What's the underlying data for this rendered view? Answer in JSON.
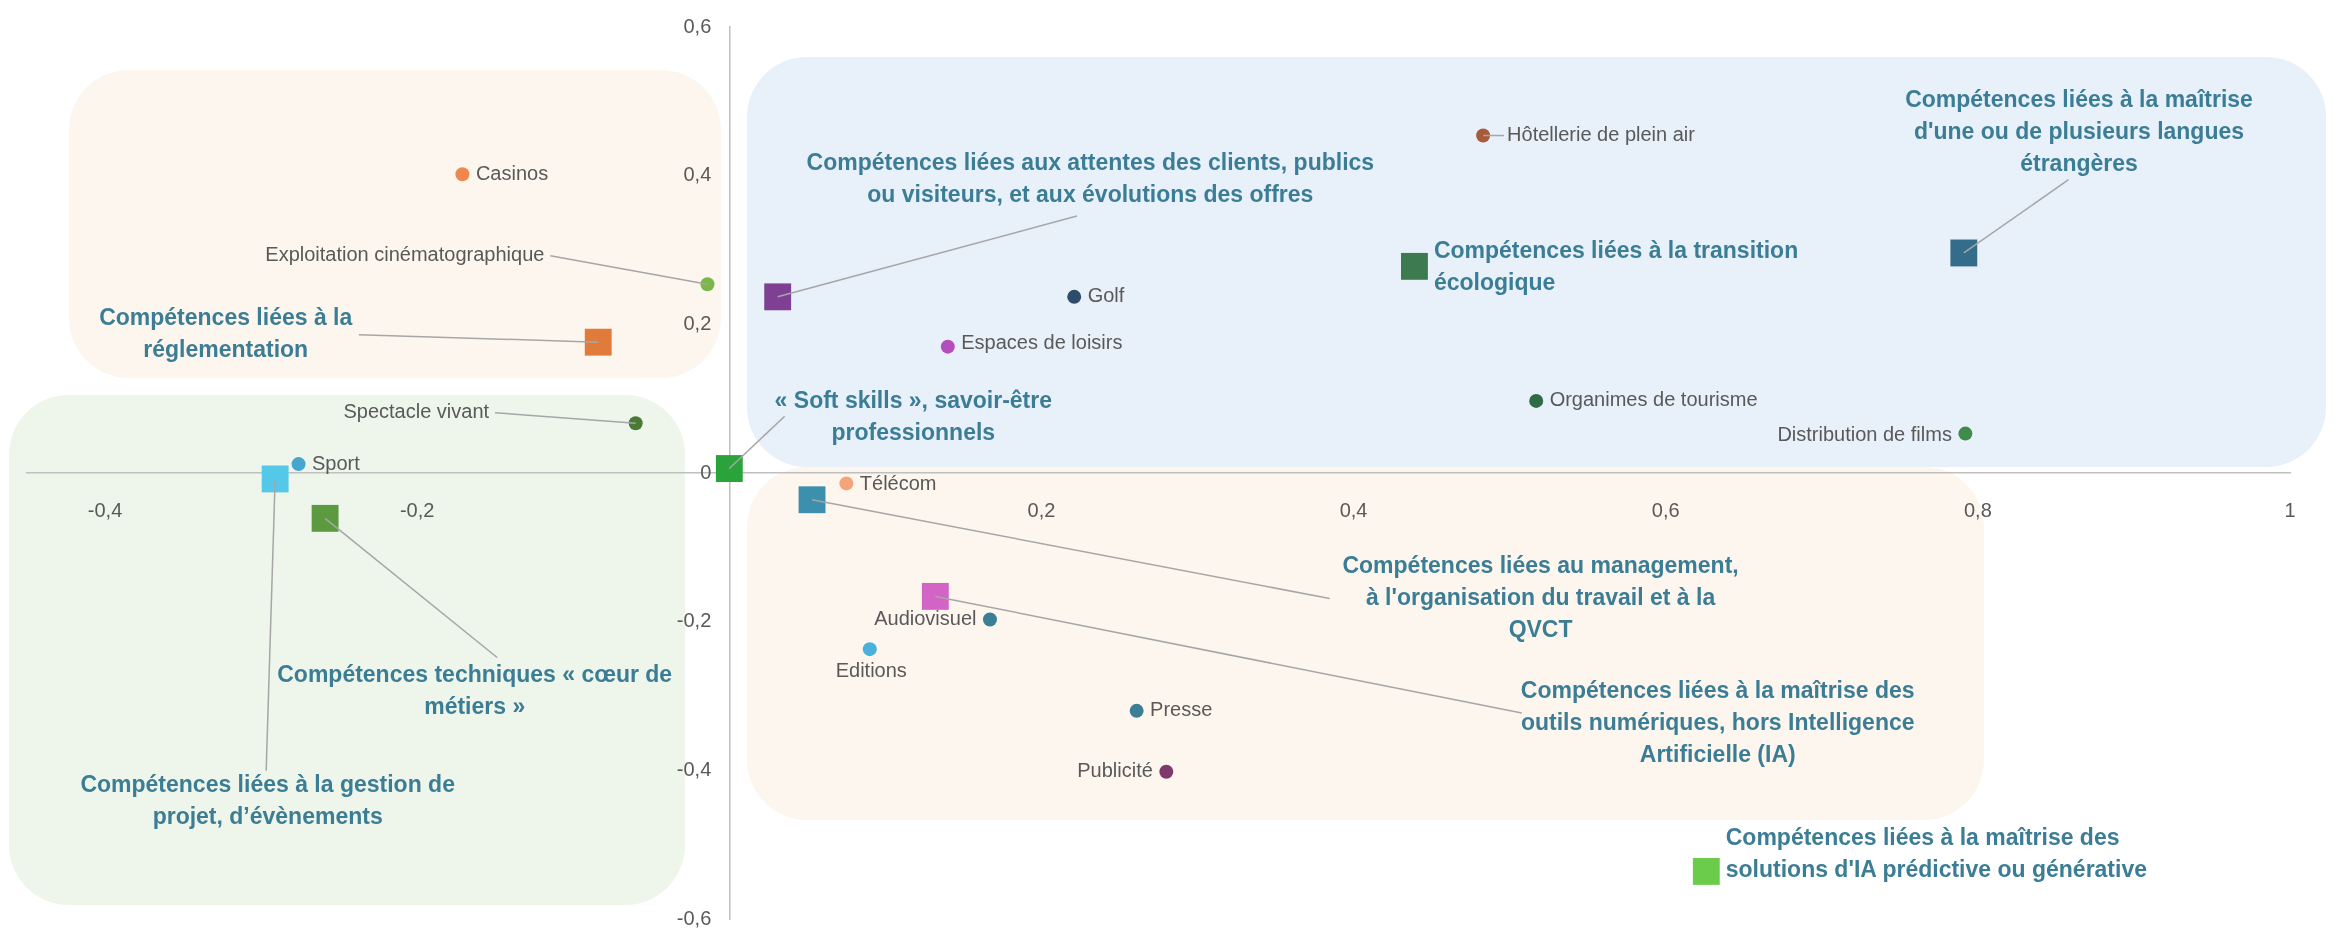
{
  "chart_data": {
    "type": "scatter",
    "xlim": [
      -0.45,
      1
    ],
    "ylim": [
      -0.6,
      0.6
    ],
    "xticks": [
      {
        "value": -0.4,
        "label": "-0,4"
      },
      {
        "value": -0.2,
        "label": "-0,2"
      },
      {
        "value": 0,
        "label": null
      },
      {
        "value": 0.2,
        "label": "0,2"
      },
      {
        "value": 0.4,
        "label": "0,4"
      },
      {
        "value": 0.6,
        "label": "0,6"
      },
      {
        "value": 0.8,
        "label": "0,8"
      },
      1
    ],
    "yticks": [
      {
        "value": -0.6,
        "label": "-0,6"
      },
      {
        "value": -0.4,
        "label": "-0,4"
      },
      {
        "value": -0.2,
        "label": "-0,2"
      },
      0,
      {
        "value": 0.2,
        "label": "0,2"
      },
      {
        "value": 0.4,
        "label": "0,4"
      },
      {
        "value": 0.6,
        "label": "0,6"
      }
    ],
    "grid": false,
    "legend": false,
    "series": [
      {
        "marker": "circle",
        "x": [
          -0.171,
          -0.014,
          -0.06,
          -0.276,
          0.483,
          0.221,
          0.14,
          0.517,
          0.792,
          0.075,
          0.167,
          0.09,
          0.261,
          0.28
        ],
        "values": [
          0.402,
          0.254,
          0.067,
          0.012,
          0.454,
          0.237,
          0.17,
          0.097,
          0.053,
          -0.014,
          -0.197,
          -0.237,
          -0.32,
          -0.402
        ],
        "colors": [
          "#f0884e",
          "#7ab648",
          "#4a7a35",
          "#45a6cf",
          "#a85a3a",
          "#2e4d6b",
          "#b44ebf",
          "#2f6b45",
          "#3e8b4a",
          "#f4a47a",
          "#3a7f93",
          "#4ab0dc",
          "#3a7f93",
          "#7d3a6b"
        ]
      },
      {
        "marker": "square",
        "x": [
          -0.084,
          0.031,
          0.439,
          0.791,
          0,
          -0.291,
          -0.259,
          0.053,
          0.132,
          0.626
        ],
        "values": [
          0.176,
          0.237,
          0.278,
          0.296,
          0.006,
          -0.008,
          -0.061,
          -0.036,
          -0.166,
          -0.536
        ],
        "colors": [
          "#e07b3b",
          "#7e3f94",
          "#3e7a4f",
          "#346d8a",
          "#2aa33a",
          "#54c8e8",
          "#5b9a3f",
          "#3d8fae",
          "#d463c6",
          "#6acc4a"
        ]
      }
    ],
    "annotations": [
      {
        "text": "Casinos",
        "x": -0.171,
        "y": 0.402
      },
      {
        "text": "Exploitation cinématographique",
        "x": -0.014,
        "y": 0.254
      },
      {
        "text": "Spectacle vivant",
        "x": -0.06,
        "y": 0.067
      },
      {
        "text": "Sport",
        "x": -0.276,
        "y": 0.012
      },
      {
        "text": "Hôtellerie de plein air",
        "x": 0.483,
        "y": 0.454
      },
      {
        "text": "Golf",
        "x": 0.221,
        "y": 0.237
      },
      {
        "text": "Espaces de loisirs",
        "x": 0.14,
        "y": 0.17
      },
      {
        "text": "Organimes de tourisme",
        "x": 0.517,
        "y": 0.097
      },
      {
        "text": "Distribution de films",
        "x": 0.792,
        "y": 0.053
      },
      {
        "text": "Télécom",
        "x": 0.075,
        "y": -0.014
      },
      {
        "text": "Audiovisuel",
        "x": 0.167,
        "y": -0.197
      },
      {
        "text": "Editions",
        "x": 0.09,
        "y": -0.237
      },
      {
        "text": "Presse",
        "x": 0.261,
        "y": -0.32
      },
      {
        "text": "Publicité",
        "x": 0.28,
        "y": -0.402
      },
      {
        "text": "Compétences liées à la réglementation",
        "x": -0.084,
        "y": 0.176
      },
      {
        "text": "Compétences liées aux attentes des clients, publics ou visiteurs, et aux évolutions des offres",
        "x": 0.031,
        "y": 0.237
      },
      {
        "text": "Compétences liées à la transition écologique",
        "x": 0.439,
        "y": 0.278
      },
      {
        "text": "Compétences liées à la maîtrise d'une ou de plusieurs langues étrangères",
        "x": 0.791,
        "y": 0.296
      },
      {
        "text": "« Soft skills », savoir-être professionnels",
        "x": 0,
        "y": 0.006
      },
      {
        "text": "Compétences liées à la gestion de projet, d’évènements",
        "x": -0.291,
        "y": -0.008
      },
      {
        "text": "Compétences techniques « cœur de métiers »",
        "x": -0.259,
        "y": -0.061
      },
      {
        "text": "Compétences liées au management, à l'organisation du travail et à la QVCT",
        "x": 0.053,
        "y": -0.036
      },
      {
        "text": "Compétences liées à la maîtrise des outils numériques, hors Intelligence Artificielle (IA)",
        "x": 0.132,
        "y": -0.166
      },
      {
        "text": "Compétences liées à la maîtrise des solutions d'IA prédictive ou générative",
        "x": 0.626,
        "y": -0.536
      }
    ]
  }
}
